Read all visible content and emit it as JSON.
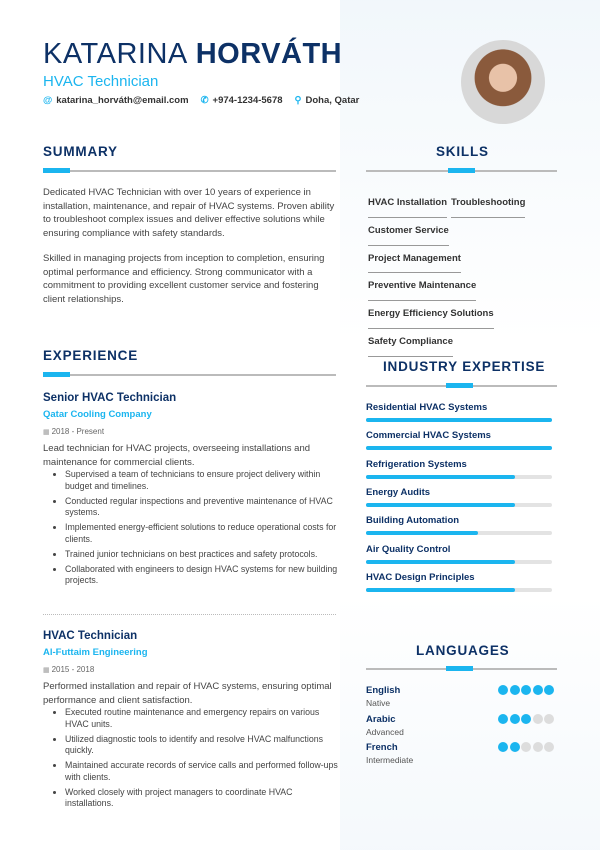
{
  "header": {
    "first_name": "KATARINA",
    "last_name": "HORVÁTH",
    "title": "HVAC Technician",
    "email": "katarina_horváth@email.com",
    "phone": "+974-1234-5678",
    "location": "Doha, Qatar"
  },
  "colors": {
    "accent": "#1bb5ef",
    "heading": "#0d3166"
  },
  "summary": {
    "heading": "SUMMARY",
    "paragraphs": [
      "Dedicated HVAC Technician with over 10 years of experience in installation, maintenance, and repair of HVAC systems. Proven ability to troubleshoot complex issues and deliver effective solutions while ensuring compliance with safety standards.",
      "Skilled in managing projects from inception to completion, ensuring optimal performance and efficiency. Strong communicator with a commitment to providing excellent customer service and fostering client relationships."
    ]
  },
  "skills": {
    "heading": "SKILLS",
    "items": [
      "HVAC Installation",
      "Troubleshooting",
      "Customer Service",
      "Project Management",
      "Preventive Maintenance",
      "Energy Efficiency Solutions",
      "Safety Compliance"
    ]
  },
  "experience": {
    "heading": "EXPERIENCE",
    "jobs": [
      {
        "title": "Senior HVAC Technician",
        "company": "Qatar Cooling Company",
        "date": "2018 - Present",
        "description": "Lead technician for HVAC projects, overseeing installations and maintenance for commercial clients.",
        "bullets": [
          "Supervised a team of technicians to ensure project delivery within budget and timelines.",
          "Conducted regular inspections and preventive maintenance of HVAC systems.",
          "Implemented energy-efficient solutions to reduce operational costs for clients.",
          "Trained junior technicians on best practices and safety protocols.",
          "Collaborated with engineers to design HVAC systems for new building projects."
        ]
      },
      {
        "title": "HVAC Technician",
        "company": "Al-Futtaim Engineering",
        "date": "2015 - 2018",
        "description": "Performed installation and repair of HVAC systems, ensuring optimal performance and client satisfaction.",
        "bullets": [
          "Executed routine maintenance and emergency repairs on various HVAC units.",
          "Utilized diagnostic tools to identify and resolve HVAC malfunctions quickly.",
          "Maintained accurate records of service calls and performed follow-ups with clients.",
          "Worked closely with project managers to coordinate HVAC installations."
        ]
      }
    ]
  },
  "expertise": {
    "heading": "INDUSTRY EXPERTISE",
    "items": [
      {
        "label": "Residential HVAC Systems",
        "level": 100
      },
      {
        "label": "Commercial HVAC Systems",
        "level": 100
      },
      {
        "label": "Refrigeration Systems",
        "level": 80
      },
      {
        "label": "Energy Audits",
        "level": 80
      },
      {
        "label": "Building Automation",
        "level": 60
      },
      {
        "label": "Air Quality Control",
        "level": 80
      },
      {
        "label": "HVAC Design Principles",
        "level": 80
      }
    ]
  },
  "languages": {
    "heading": "LANGUAGES",
    "items": [
      {
        "name": "English",
        "level": "Native",
        "dots": 5
      },
      {
        "name": "Arabic",
        "level": "Advanced",
        "dots": 3
      },
      {
        "name": "French",
        "level": "Intermediate",
        "dots": 2
      }
    ]
  }
}
